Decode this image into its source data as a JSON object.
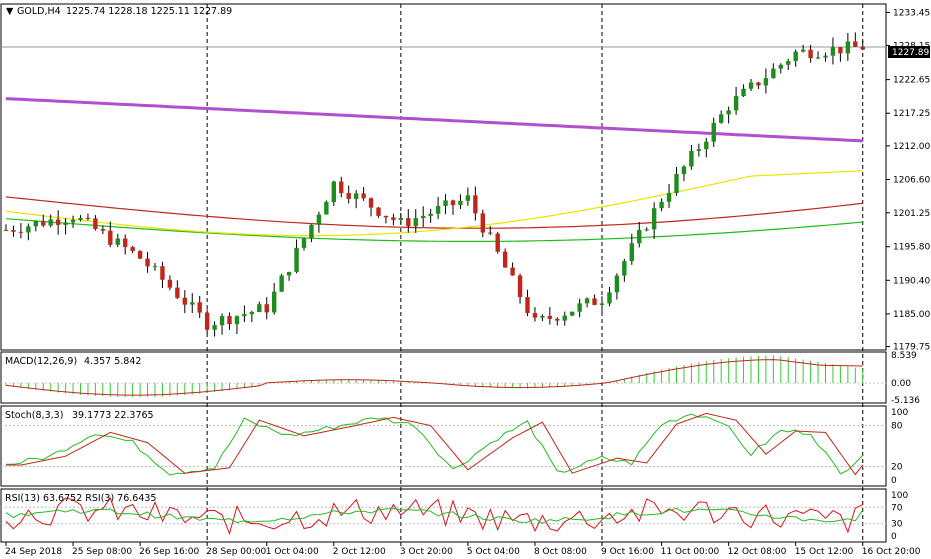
{
  "colors": {
    "background": "#ffffff",
    "frame": "#000000",
    "bull_candle": "#1e8c1e",
    "bear_candle": "#c0271a",
    "ma_purple": "#b04fd0",
    "ma_red": "#c0271a",
    "ma_green": "#22bb22",
    "ma_yellow": "#e6e600",
    "macd_hist": "#33cc33",
    "macd_signal": "#c0271a",
    "stoch_main": "#22bb22",
    "stoch_signal": "#c0271a",
    "rsi_fast": "#d9141a",
    "rsi_slow": "#22bb22",
    "last_price_line": "#9a9a9a"
  },
  "header": {
    "symbol_timeframe": "GOLD,H4",
    "ohlc": "1225.74 1228.18 1225.11 1227.89"
  },
  "current_price_label": "1227.89",
  "x_axis_labels": [
    "24 Sep 2018",
    "25 Sep 08:00",
    "26 Sep 16:00",
    "28 Sep 00:00",
    "1 Oct 04:00",
    "2 Oct 12:00",
    "3 Oct 20:00",
    "5 Oct 04:00",
    "8 Oct 08:00",
    "9 Oct 16:00",
    "11 Oct 00:00",
    "12 Oct 08:00",
    "15 Oct 12:00",
    "16 Oct 20:00"
  ],
  "chart_data": [
    {
      "type": "candlestick",
      "symbol": "GOLD",
      "timeframe": "H4",
      "y_ticks": [
        1233.45,
        1228.15,
        1222.65,
        1217.25,
        1212.0,
        1206.6,
        1201.25,
        1195.8,
        1190.4,
        1185.0,
        1179.75
      ],
      "ylim": [
        1179.2,
        1234.8
      ],
      "key_points": [
        {
          "time": "24 Sep 2018",
          "close": 1198.5
        },
        {
          "time": "25 Sep 08:00",
          "close": 1200.8
        },
        {
          "time": "26 Sep 16:00",
          "close": 1194.0
        },
        {
          "time": "28 Sep 00:00",
          "close": 1183.5
        },
        {
          "time": "1 Oct 04:00",
          "close": 1186.0
        },
        {
          "time": "2 Oct 12:00",
          "close": 1206.0
        },
        {
          "time": "3 Oct 20:00",
          "close": 1199.5
        },
        {
          "time": "5 Oct 04:00",
          "close": 1203.5
        },
        {
          "time": "8 Oct 08:00",
          "close": 1183.5
        },
        {
          "time": "9 Oct 16:00",
          "close": 1187.5
        },
        {
          "time": "11 Oct 00:00",
          "close": 1203.5
        },
        {
          "time": "12 Oct 08:00",
          "close": 1218.5
        },
        {
          "time": "15 Oct 12:00",
          "close": 1227.0
        },
        {
          "time": "16 Oct 20:00",
          "close": 1227.89
        }
      ],
      "moving_averages": [
        {
          "color": "purple",
          "start": 1219.6,
          "end": 1212.8
        },
        {
          "color": "red",
          "start": 1203.8,
          "end": 1205.5
        },
        {
          "color": "green",
          "start": 1200.3,
          "end": 1201.8
        },
        {
          "color": "yellow",
          "start": 1201.5,
          "end": 1208.0
        }
      ],
      "last_price": 1227.89
    },
    {
      "type": "histogram",
      "indicator": "MACD(12,26,9)",
      "values_text": "4.357 5.842",
      "y_ticks": [
        "8.539",
        "0.00",
        "-5.136"
      ],
      "ylim": [
        -5.136,
        8.539
      ],
      "last_histogram": 4.357,
      "last_signal": 5.842
    },
    {
      "type": "line",
      "indicator": "Stoch(8,3,3)",
      "values_text": "39.1773 22.3765",
      "y_ticks": [
        "100",
        "80",
        "20",
        "0"
      ],
      "ylim": [
        0,
        100
      ],
      "last_main": 39.1773,
      "last_signal": 22.3765
    },
    {
      "type": "line",
      "indicator": "RSI(13) 63.6752 RSI(3) 76.6435",
      "values_text": "",
      "y_ticks": [
        "100",
        "70",
        "30",
        "0"
      ],
      "ylim": [
        0,
        100
      ],
      "last_rsi13": 63.6752,
      "last_rsi3": 76.6435
    }
  ]
}
